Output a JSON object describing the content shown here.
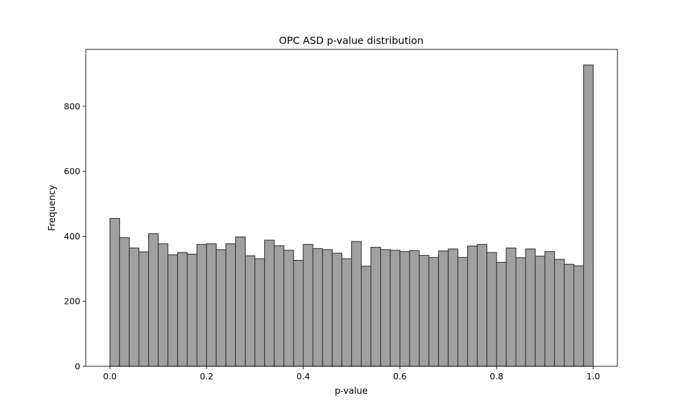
{
  "chart_data": {
    "type": "bar",
    "title": "OPC ASD p-value distribution",
    "xlabel": "p-value",
    "ylabel": "Frequency",
    "xlim": [
      -0.05,
      1.05
    ],
    "ylim": [
      0,
      975
    ],
    "xticks": [
      0.0,
      0.2,
      0.4,
      0.6,
      0.8,
      1.0
    ],
    "xtick_labels": [
      "0.0",
      "0.2",
      "0.4",
      "0.6",
      "0.8",
      "1.0"
    ],
    "yticks": [
      0,
      200,
      400,
      600,
      800
    ],
    "ytick_labels": [
      "0",
      "200",
      "400",
      "600",
      "800"
    ],
    "bin_edges": [
      0.0,
      0.02,
      0.04,
      0.06,
      0.08,
      0.1,
      0.12,
      0.14,
      0.16,
      0.18,
      0.2,
      0.22,
      0.24,
      0.26,
      0.28,
      0.3,
      0.32,
      0.34,
      0.36,
      0.38,
      0.4,
      0.42,
      0.44,
      0.46,
      0.48,
      0.5,
      0.52,
      0.54,
      0.56,
      0.58,
      0.6,
      0.62,
      0.64,
      0.66,
      0.68,
      0.7,
      0.72,
      0.74,
      0.76,
      0.78,
      0.8,
      0.82,
      0.84,
      0.86,
      0.88,
      0.9,
      0.92,
      0.94,
      0.96,
      0.98,
      1.0
    ],
    "values": [
      455,
      396,
      364,
      352,
      408,
      377,
      343,
      350,
      345,
      375,
      377,
      359,
      377,
      398,
      340,
      331,
      388,
      371,
      357,
      326,
      375,
      362,
      359,
      348,
      331,
      384,
      308,
      366,
      359,
      357,
      353,
      356,
      341,
      335,
      355,
      361,
      335,
      370,
      375,
      350,
      320,
      364,
      334,
      361,
      339,
      353,
      329,
      314,
      309,
      927
    ],
    "bar_color": "#a0a0a0",
    "edge_color": "#333333",
    "grid": false,
    "legend": null
  }
}
